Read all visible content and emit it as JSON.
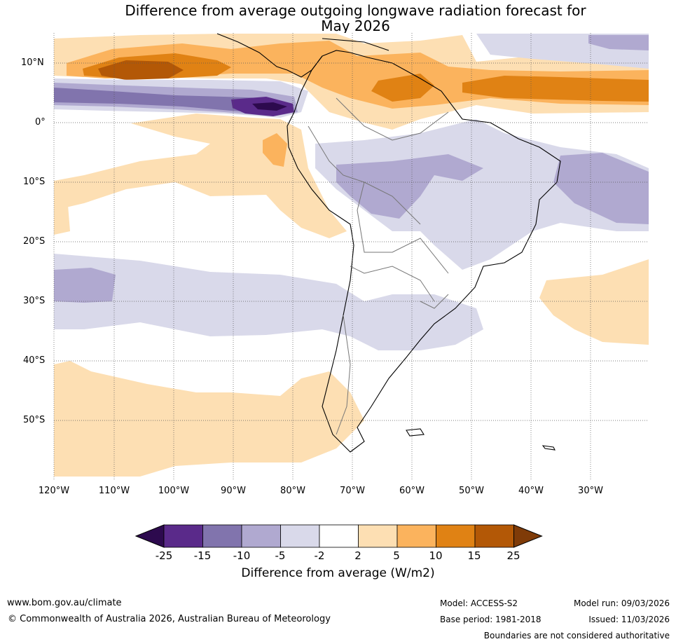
{
  "title_line1": "Difference from average outgoing longwave radiation forecast for",
  "title_line2": "May 2026",
  "lat_labels": [
    "10°N",
    "0°",
    "10°S",
    "20°S",
    "30°S",
    "40°S",
    "50°S"
  ],
  "lon_labels": [
    "120°W",
    "110°W",
    "100°W",
    "90°W",
    "80°W",
    "70°W",
    "60°W",
    "50°W",
    "40°W",
    "30°W"
  ],
  "colorbar": {
    "ticks": [
      "-25",
      "-15",
      "-10",
      "-5",
      "-2",
      "2",
      "5",
      "10",
      "15",
      "25"
    ],
    "colors": [
      "#2d0a4e",
      "#5a2a8a",
      "#8174ad",
      "#b0a9d0",
      "#d9d9ea",
      "#ffffff",
      "#fddfb3",
      "#fbb35d",
      "#e08214",
      "#b35806",
      "#7f3b08"
    ],
    "label": "Difference from average (W/m2)"
  },
  "footer": {
    "website": "www.bom.gov.au/climate",
    "copyright": "© Commonwealth of Australia 2026, Australian Bureau of Meteorology",
    "model": "Model: ACCESS-S2",
    "base_period": "Base period: 1981-2018",
    "model_run": "Model run: 09/03/2026",
    "issued": "Issued: 11/03/2026",
    "disclaimer": "Boundaries are not considered authoritative"
  }
}
